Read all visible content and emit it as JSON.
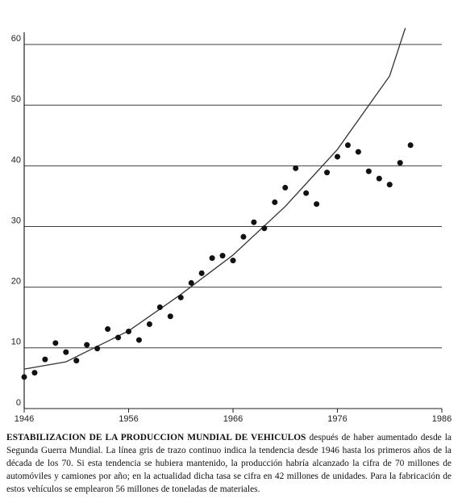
{
  "chart_data": {
    "type": "scatter",
    "x": [
      1946,
      1947,
      1948,
      1949,
      1950,
      1951,
      1952,
      1953,
      1954,
      1955,
      1956,
      1957,
      1958,
      1959,
      1960,
      1961,
      1962,
      1963,
      1964,
      1965,
      1966,
      1967,
      1968,
      1969,
      1970,
      1971,
      1972,
      1973,
      1974,
      1975,
      1976,
      1977,
      1978,
      1979,
      1980,
      1981,
      1982,
      1983
    ],
    "values": [
      5.2,
      5.9,
      8.1,
      10.8,
      9.3,
      7.9,
      10.5,
      9.9,
      13.1,
      11.7,
      12.7,
      11.3,
      13.9,
      16.7,
      15.2,
      18.3,
      20.7,
      22.3,
      24.8,
      25.2,
      24.4,
      28.3,
      30.7,
      29.7,
      34.0,
      36.4,
      39.6,
      35.5,
      33.7,
      38.9,
      41.5,
      43.4,
      42.3,
      39.1,
      37.9,
      36.9,
      40.5,
      43.4
    ],
    "color": "#111111",
    "trend": {
      "x": [
        1946,
        1950,
        1956,
        1961,
        1966,
        1971,
        1976,
        1981,
        1982.5
      ],
      "values": [
        6.5,
        7.7,
        12.8,
        18.8,
        25.3,
        33.3,
        42.7,
        54.8,
        62.7
      ],
      "color": "#333333"
    },
    "xlim": [
      1946,
      1986
    ],
    "ylim": [
      0,
      62
    ],
    "xticks": [
      1946,
      1956,
      1966,
      1976,
      1986
    ],
    "yticks": [
      0,
      10,
      20,
      30,
      40,
      50,
      60
    ],
    "grid": true,
    "caption_title": "ESTABILIZACION DE LA PRODUCCION MUNDIAL DE VEHICULOS",
    "caption_text": "después de haber aumentado desde la Segunda Guerra Mundial. La línea gris de trazo continuo indica la tendencia desde 1946 hasta los primeros años de la década de los 70. Si esta tendencia se hubiera mantenido, la producción habría alcanzado la cifra de 70 millones de automóviles y camiones por año; en la actualidad dicha tasa se cifra en 42 millones de unidades. Para la fabricación de estos vehículos se emplearon 56 millones de toneladas de materiales."
  }
}
